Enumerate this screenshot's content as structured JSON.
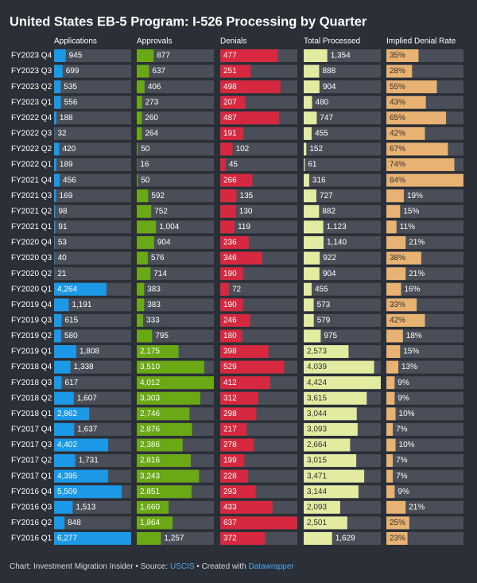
{
  "chart_data": {
    "type": "bar",
    "title": "United States EB-5 Program: I-526 Processing by Quarter",
    "categories": [
      "FY2023 Q4",
      "FY2023 Q3",
      "FY2023 Q2",
      "FY2023 Q1",
      "FY2022 Q4",
      "FY2022 Q3",
      "FY2022 Q2",
      "FY2022 Q1",
      "FY2021 Q4",
      "FY2021 Q3",
      "FY2021 Q2",
      "FY2021 Q1",
      "FY2020 Q4",
      "FY2020 Q3",
      "FY2020 Q2",
      "FY2020 Q1",
      "FY2019 Q4",
      "FY2019 Q3",
      "FY2019 Q2",
      "FY2019 Q1",
      "FY2018 Q4",
      "FY2018 Q3",
      "FY2018 Q2",
      "FY2018 Q1",
      "FY2017 Q4",
      "FY2017 Q3",
      "FY2017 Q2",
      "FY2017 Q1",
      "FY2016 Q4",
      "FY2016 Q3",
      "FY2016 Q2",
      "FY2016 Q1"
    ],
    "series": [
      {
        "name": "Applications",
        "color": "#1b98e6",
        "xlim": [
          0,
          6277
        ],
        "values": [
          945,
          699,
          535,
          556,
          188,
          32,
          420,
          189,
          456,
          169,
          98,
          91,
          53,
          40,
          21,
          4264,
          1191,
          615,
          580,
          1808,
          1338,
          617,
          1607,
          2862,
          1637,
          4402,
          1731,
          4395,
          5509,
          1513,
          848,
          6277
        ],
        "value_labels": [
          "945",
          "699",
          "535",
          "556",
          "188",
          "32",
          "420",
          "189",
          "456",
          "169",
          "98",
          "91",
          "53",
          "40",
          "21",
          "4,264",
          "1,191",
          "615",
          "580",
          "1,808",
          "1,338",
          "617",
          "1,607",
          "2,862",
          "1,637",
          "4,402",
          "1,731",
          "4,395",
          "5,509",
          "1,513",
          "848",
          "6,277"
        ]
      },
      {
        "name": "Approvals",
        "color": "#6aa815",
        "xlim": [
          0,
          4012
        ],
        "values": [
          877,
          637,
          406,
          273,
          260,
          264,
          50,
          16,
          50,
          592,
          752,
          1004,
          904,
          576,
          714,
          383,
          383,
          333,
          795,
          2175,
          3510,
          4012,
          3303,
          2746,
          2876,
          2386,
          2816,
          3243,
          2851,
          1660,
          1864,
          1257
        ],
        "value_labels": [
          "877",
          "637",
          "406",
          "273",
          "260",
          "264",
          "50",
          "16",
          "50",
          "592",
          "752",
          "1,004",
          "904",
          "576",
          "714",
          "383",
          "383",
          "333",
          "795",
          "2,175",
          "3,510",
          "4,012",
          "3,303",
          "2,746",
          "2,876",
          "2,386",
          "2,816",
          "3,243",
          "2,851",
          "1,660",
          "1,864",
          "1,257"
        ]
      },
      {
        "name": "Denials",
        "color": "#d6283f",
        "xlim": [
          0,
          637
        ],
        "values": [
          477,
          251,
          498,
          207,
          487,
          191,
          102,
          45,
          266,
          135,
          130,
          119,
          236,
          346,
          190,
          72,
          190,
          246,
          180,
          398,
          529,
          412,
          312,
          298,
          217,
          278,
          199,
          228,
          293,
          433,
          637,
          372
        ],
        "value_labels": [
          "477",
          "251",
          "498",
          "207",
          "487",
          "191",
          "102",
          "45",
          "266",
          "135",
          "130",
          "119",
          "236",
          "346",
          "190",
          "72",
          "190",
          "246",
          "180",
          "398",
          "529",
          "412",
          "312",
          "298",
          "217",
          "278",
          "199",
          "228",
          "293",
          "433",
          "637",
          "372"
        ]
      },
      {
        "name": "Total Processed",
        "color": "#e2eba0",
        "xlim": [
          0,
          4424
        ],
        "values": [
          1354,
          888,
          904,
          480,
          747,
          455,
          152,
          61,
          316,
          727,
          882,
          1123,
          1140,
          922,
          904,
          455,
          573,
          579,
          975,
          2573,
          4039,
          4424,
          3615,
          3044,
          3093,
          2664,
          3015,
          3471,
          3144,
          2093,
          2501,
          1629
        ],
        "value_labels": [
          "1,354",
          "888",
          "904",
          "480",
          "747",
          "455",
          "152",
          "61",
          "316",
          "727",
          "882",
          "1,123",
          "1,140",
          "922",
          "904",
          "455",
          "573",
          "579",
          "975",
          "2,573",
          "4,039",
          "4,424",
          "3,615",
          "3,044",
          "3,093",
          "2,664",
          "3,015",
          "3,471",
          "3,144",
          "2,093",
          "2,501",
          "1,629"
        ]
      },
      {
        "name": "Implied Denial Rate",
        "color": "#e7b272",
        "xlim": [
          0,
          84
        ],
        "values": [
          35,
          28,
          55,
          43,
          65,
          42,
          67,
          74,
          84,
          19,
          15,
          11,
          21,
          38,
          21,
          16,
          33,
          42,
          18,
          15,
          13,
          9,
          9,
          10,
          7,
          10,
          7,
          7,
          9,
          21,
          25,
          23
        ],
        "value_labels": [
          "35%",
          "28%",
          "55%",
          "43%",
          "65%",
          "42%",
          "67%",
          "74%",
          "84%",
          "19%",
          "15%",
          "11%",
          "21%",
          "38%",
          "21%",
          "16%",
          "33%",
          "42%",
          "18%",
          "15%",
          "13%",
          "9%",
          "9%",
          "10%",
          "7%",
          "10%",
          "7%",
          "7%",
          "9%",
          "21%",
          "25%",
          "23%"
        ]
      }
    ],
    "notes": [
      "Chart: Investment Migration Insider",
      "Source:",
      "USCIS",
      "Created with",
      "Datawrapper"
    ]
  }
}
